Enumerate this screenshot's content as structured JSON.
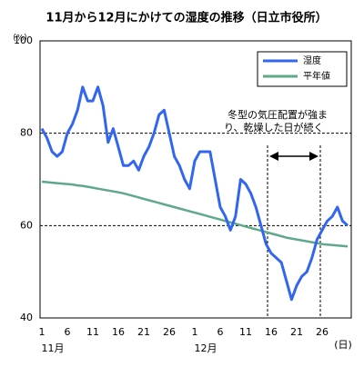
{
  "chart_data": {
    "type": "line",
    "title": "11月から12月にかけての湿度の推移（日立市役所）",
    "y_label": "（%）",
    "x_label": "(日)",
    "months": [
      "11月",
      "12月"
    ],
    "categories": [
      "1",
      null,
      null,
      null,
      null,
      "6",
      null,
      null,
      null,
      null,
      "11",
      null,
      null,
      null,
      null,
      "16",
      null,
      null,
      null,
      null,
      "21",
      null,
      null,
      null,
      null,
      "26",
      null,
      null,
      null,
      null,
      "1",
      null,
      null,
      null,
      null,
      "6",
      null,
      null,
      null,
      null,
      "11",
      null,
      null,
      null,
      null,
      "16",
      null,
      null,
      null,
      null,
      "21",
      null,
      null,
      null,
      null,
      "26",
      null,
      null,
      null,
      null,
      null
    ],
    "series": [
      {
        "name": "湿度",
        "color": "#3366ee",
        "values": [
          81,
          79,
          76,
          75,
          76,
          80,
          82,
          85,
          90,
          87,
          87,
          90,
          86,
          78,
          81,
          77,
          73,
          73,
          74,
          72,
          75,
          77,
          80,
          84,
          85,
          80,
          75,
          73,
          70,
          68,
          74,
          76,
          76,
          76,
          70,
          64,
          62,
          59,
          62,
          70,
          69,
          67,
          64,
          60,
          56,
          54,
          53,
          52,
          48,
          44,
          47,
          49,
          50,
          53,
          57,
          59,
          61,
          62,
          64,
          61,
          60
        ]
      },
      {
        "name": "平年値",
        "color": "#5fa88a",
        "values": [
          69.5,
          69.4,
          69.3,
          69.2,
          69.1,
          69.0,
          68.9,
          68.7,
          68.6,
          68.4,
          68.2,
          68.0,
          67.8,
          67.6,
          67.4,
          67.2,
          67.0,
          66.7,
          66.4,
          66.1,
          65.8,
          65.5,
          65.2,
          64.9,
          64.6,
          64.3,
          64.0,
          63.7,
          63.4,
          63.1,
          62.8,
          62.5,
          62.2,
          61.9,
          61.6,
          61.3,
          61.0,
          60.7,
          60.4,
          60.1,
          59.8,
          59.5,
          59.2,
          58.9,
          58.6,
          58.3,
          58.0,
          57.7,
          57.4,
          57.2,
          57.0,
          56.8,
          56.6,
          56.4,
          56.2,
          56.0,
          55.9,
          55.8,
          55.7,
          55.6,
          55.5
        ]
      }
    ],
    "ylim": [
      40,
      100
    ],
    "yticks": [
      40,
      60,
      80,
      100
    ],
    "grid": true,
    "annotation": [
      "冬型の気圧配置が強ま",
      "り、乾燥した日が続く"
    ]
  }
}
